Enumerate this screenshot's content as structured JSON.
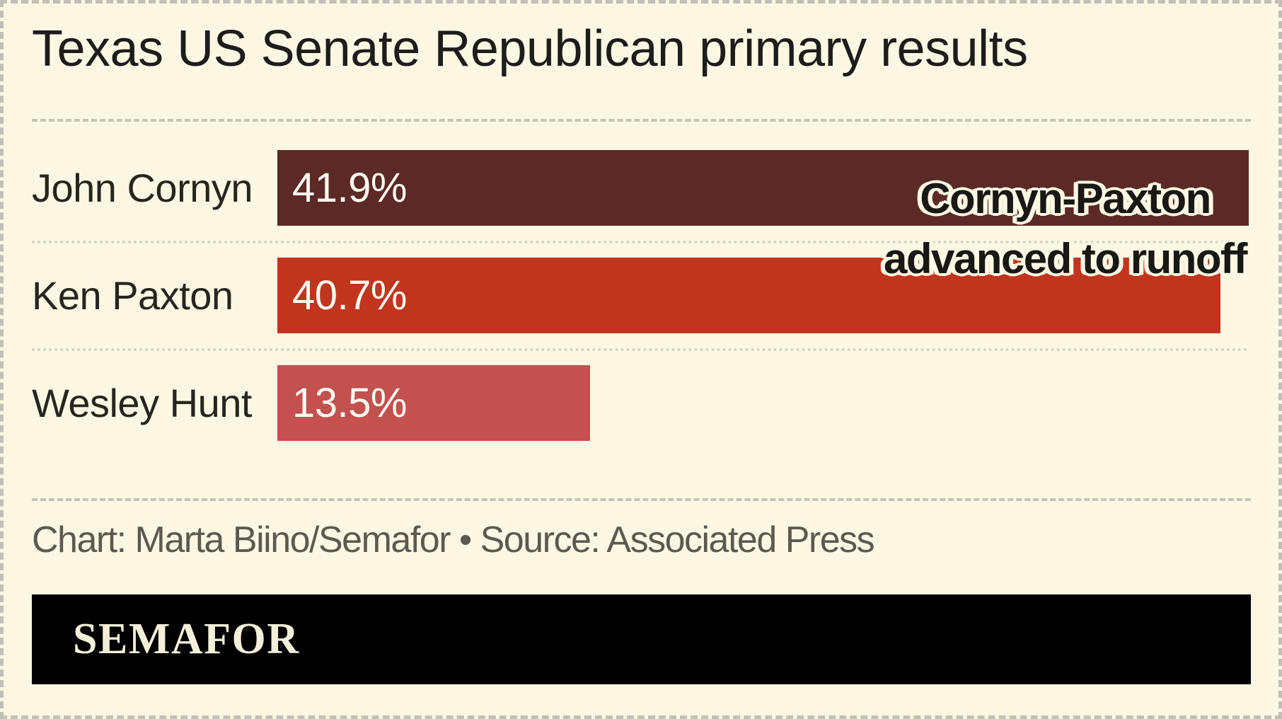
{
  "title": "Texas US Senate Republican primary results",
  "annotation": {
    "line1": "Cornyn-Paxton",
    "line2": "advanced to runoff"
  },
  "footer": {
    "credit": "Chart: Marta Biino/Semafor • Source: Associated Press"
  },
  "logo": {
    "text": "SEMAFOR"
  },
  "colors": {
    "background": "#fbf7e3",
    "cornyn_bar": "#5c2a26",
    "paxton_bar": "#c1351f",
    "hunt_bar": "#c25150",
    "value_text": "#fdfbf2",
    "annotation_text": "#181815",
    "footer_text": "#5c594f",
    "logo_bar": "#000000",
    "logo_text": "#f4efd9",
    "dashed_border": "#c2c0b4"
  },
  "chart_data": {
    "type": "bar",
    "orientation": "horizontal",
    "title": "Texas US Senate Republican primary results",
    "categories": [
      "John Cornyn",
      "Ken Paxton",
      "Wesley Hunt"
    ],
    "values": [
      41.9,
      40.7,
      13.5
    ],
    "value_labels": [
      "41.9%",
      "40.7%",
      "13.5%"
    ],
    "bar_colors": [
      "#5c2a26",
      "#c1351f",
      "#c25150"
    ],
    "xlabel": "",
    "ylabel": "",
    "xlim": [
      0,
      42
    ],
    "grid": false,
    "legend": false,
    "annotation": "Cornyn-Paxton advanced to runoff",
    "source": "Associated Press",
    "credit": "Marta Biino/Semafor"
  }
}
